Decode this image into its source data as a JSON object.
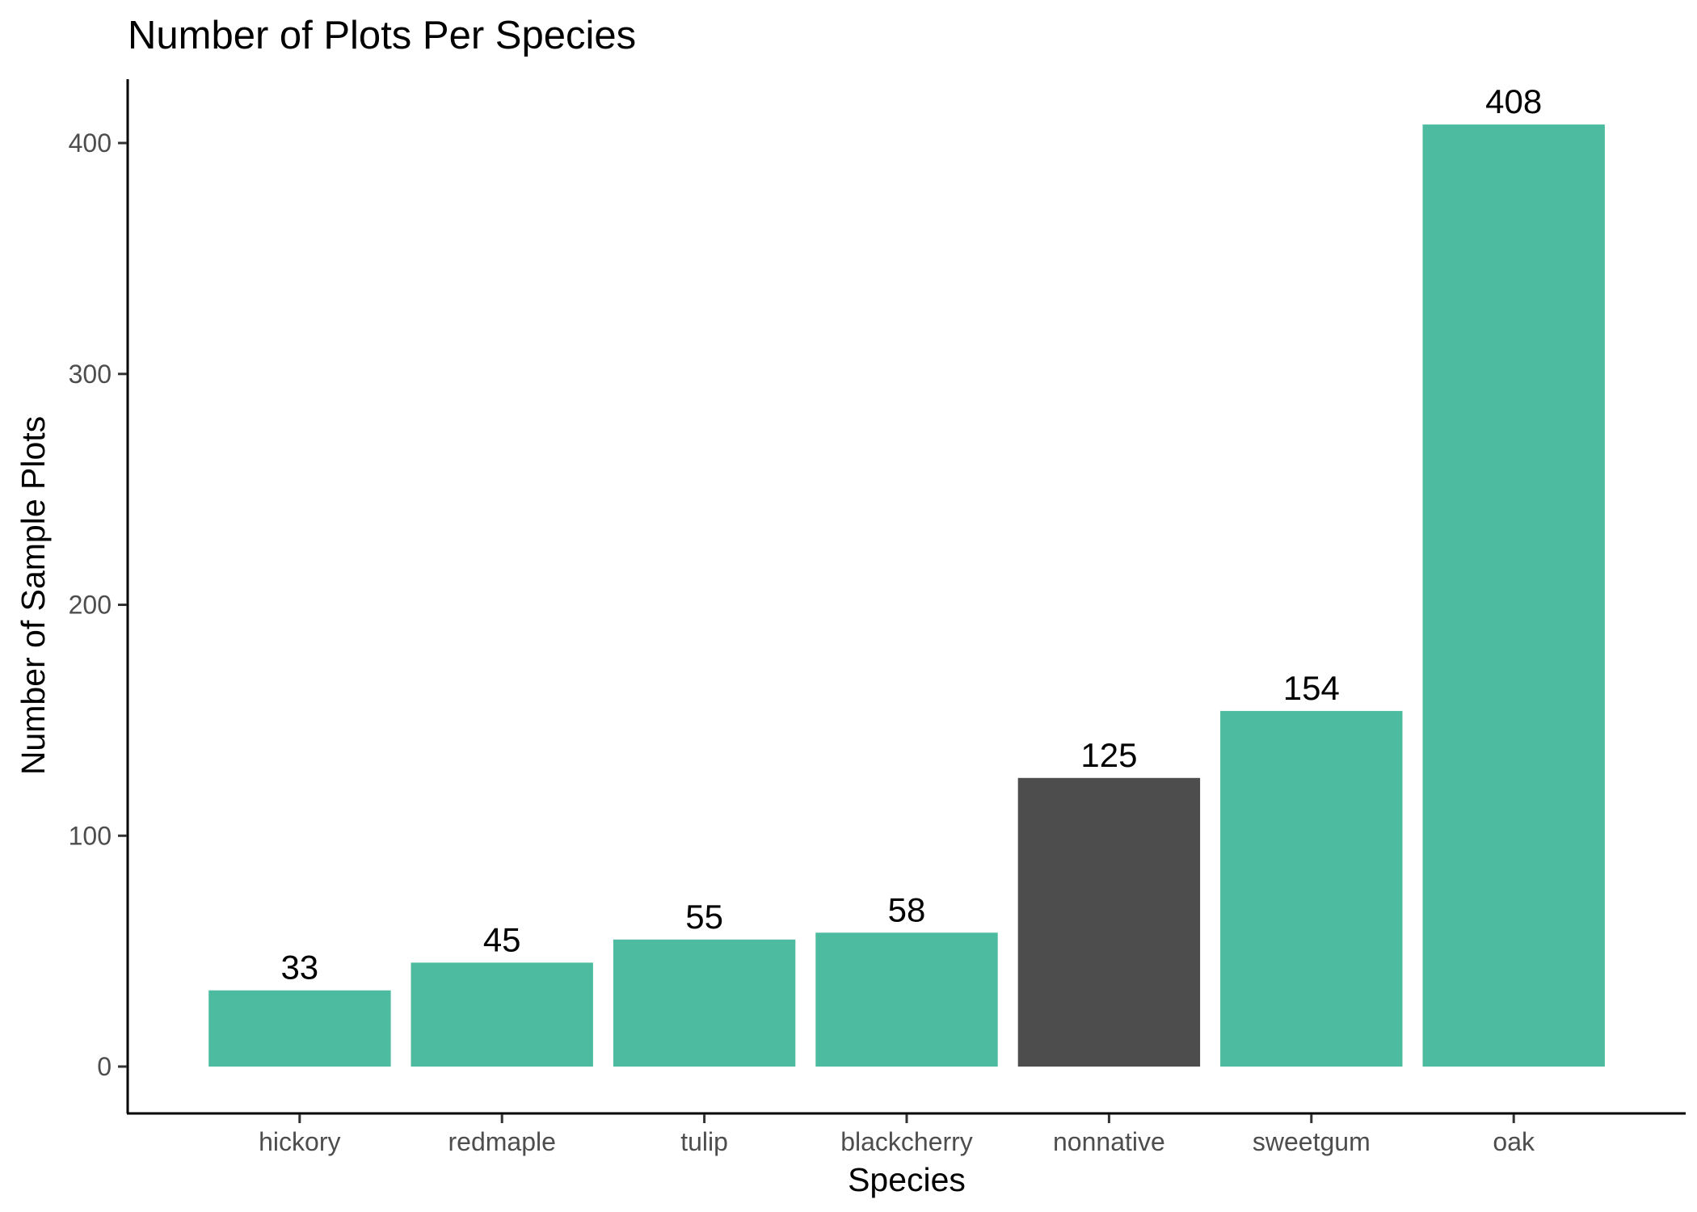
{
  "chart_data": {
    "type": "bar",
    "title": "Number of Plots Per Species",
    "xlabel": "Species",
    "ylabel": "Number of Sample Plots",
    "categories": [
      "hickory",
      "redmaple",
      "tulip",
      "blackcherry",
      "nonnative",
      "sweetgum",
      "oak"
    ],
    "values": [
      33,
      45,
      55,
      58,
      125,
      154,
      408
    ],
    "data_labels": [
      "33",
      "45",
      "55",
      "58",
      "125",
      "154",
      "408"
    ],
    "bar_colors": [
      "#4dbb9f",
      "#4dbb9f",
      "#4dbb9f",
      "#4dbb9f",
      "#4d4d4d",
      "#4dbb9f",
      "#4dbb9f"
    ],
    "y_ticks": [
      0,
      100,
      200,
      300,
      400
    ],
    "y_tick_labels": [
      "0",
      "100",
      "200",
      "300",
      "400"
    ],
    "ylim": [
      -20,
      428
    ],
    "grid": false,
    "legend": "none"
  }
}
